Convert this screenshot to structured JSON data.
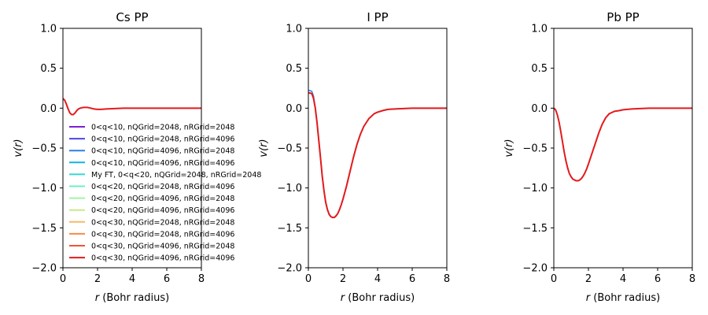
{
  "chart_data": [
    {
      "type": "line",
      "title": "Cs PP",
      "xlabel_parts": [
        "r",
        " (Bohr radius)"
      ],
      "ylabel_parts": [
        "v(r)"
      ],
      "xlim": [
        0,
        8
      ],
      "ylim": [
        -2.0,
        1.0
      ],
      "xticks": [
        "0",
        "2",
        "4",
        "6",
        "8"
      ],
      "yticks": [
        "1.0",
        "0.5",
        "0.0",
        "−0.5",
        "−1.0",
        "−1.5",
        "−2.0"
      ],
      "grid": false,
      "legend_location": "lower-left, extending beyond axes",
      "series_color": "#e31a1c",
      "x": [
        0,
        0.1,
        0.2,
        0.3,
        0.4,
        0.5,
        0.6,
        0.7,
        0.8,
        0.9,
        1.0,
        1.2,
        1.4,
        1.6,
        1.8,
        2.0,
        2.2,
        2.5,
        3.0,
        3.5,
        4.0,
        5.0,
        6.0,
        7.0,
        8.0
      ],
      "y": [
        0.12,
        0.1,
        0.05,
        -0.01,
        -0.06,
        -0.08,
        -0.08,
        -0.06,
        -0.03,
        -0.01,
        0.0,
        0.01,
        0.01,
        0.0,
        -0.01,
        -0.015,
        -0.015,
        -0.01,
        -0.005,
        0.0,
        0.0,
        0.0,
        0.0,
        0.0,
        0.0
      ]
    },
    {
      "type": "line",
      "title": "I PP",
      "xlabel_parts": [
        "r",
        " (Bohr radius)"
      ],
      "ylabel_parts": [
        "v(r)"
      ],
      "xlim": [
        0,
        8
      ],
      "ylim": [
        -2.0,
        1.0
      ],
      "xticks": [
        "0",
        "2",
        "4",
        "6",
        "8"
      ],
      "yticks": [
        "1.0",
        "0.5",
        "0.0",
        "−0.5",
        "−1.0",
        "−1.5",
        "−2.0"
      ],
      "grid": false,
      "series_color": "#e31a1c",
      "x": [
        0,
        0.1,
        0.2,
        0.3,
        0.4,
        0.5,
        0.6,
        0.7,
        0.8,
        0.9,
        1.0,
        1.1,
        1.2,
        1.3,
        1.4,
        1.5,
        1.6,
        1.7,
        1.8,
        1.9,
        2.0,
        2.2,
        2.4,
        2.6,
        2.8,
        3.0,
        3.2,
        3.5,
        3.8,
        4.0,
        4.3,
        4.6,
        5.0,
        5.5,
        6.0,
        7.0,
        8.0
      ],
      "y": [
        0.19,
        0.19,
        0.18,
        0.12,
        0.0,
        -0.18,
        -0.4,
        -0.62,
        -0.85,
        -1.03,
        -1.18,
        -1.27,
        -1.33,
        -1.36,
        -1.37,
        -1.37,
        -1.35,
        -1.32,
        -1.27,
        -1.21,
        -1.14,
        -0.98,
        -0.8,
        -0.62,
        -0.46,
        -0.33,
        -0.23,
        -0.13,
        -0.07,
        -0.05,
        -0.03,
        -0.015,
        -0.01,
        -0.005,
        0.0,
        0.0,
        0.0
      ]
    },
    {
      "type": "line",
      "title": "Pb PP",
      "xlabel_parts": [
        "r",
        " (Bohr radius)"
      ],
      "ylabel_parts": [
        "v(r)"
      ],
      "xlim": [
        0,
        8
      ],
      "ylim": [
        -2.0,
        1.0
      ],
      "xticks": [
        "0",
        "2",
        "4",
        "6",
        "8"
      ],
      "yticks": [
        "1.0",
        "0.5",
        "0.0",
        "−0.5",
        "−1.0",
        "−1.5",
        "−2.0"
      ],
      "grid": false,
      "series_color": "#e31a1c",
      "x": [
        0,
        0.1,
        0.2,
        0.3,
        0.4,
        0.5,
        0.6,
        0.7,
        0.8,
        0.9,
        1.0,
        1.1,
        1.2,
        1.3,
        1.4,
        1.5,
        1.6,
        1.7,
        1.8,
        1.9,
        2.0,
        2.2,
        2.4,
        2.6,
        2.8,
        3.0,
        3.2,
        3.5,
        3.8,
        4.0,
        4.5,
        5.0,
        5.5,
        6.0,
        7.0,
        8.0
      ],
      "y": [
        0.0,
        -0.02,
        -0.08,
        -0.17,
        -0.29,
        -0.42,
        -0.55,
        -0.66,
        -0.75,
        -0.82,
        -0.86,
        -0.89,
        -0.9,
        -0.91,
        -0.91,
        -0.9,
        -0.88,
        -0.85,
        -0.81,
        -0.76,
        -0.7,
        -0.57,
        -0.44,
        -0.31,
        -0.2,
        -0.12,
        -0.07,
        -0.04,
        -0.03,
        -0.02,
        -0.01,
        -0.005,
        0.0,
        0.0,
        0.0,
        0.0
      ]
    }
  ],
  "legend": {
    "entries": [
      {
        "label": "0<q<10, nQGrid=2048, nRGrid=2048",
        "color": "#7e1fd1"
      },
      {
        "label": "0<q<10, nQGrid=2048, nRGrid=4096",
        "color": "#4a47e8"
      },
      {
        "label": "0<q<10, nQGrid=4096, nRGrid=2048",
        "color": "#2b7fe0"
      },
      {
        "label": "0<q<10, nQGrid=4096, nRGrid=4096",
        "color": "#14b2e6"
      },
      {
        "label": "My FT, 0<q<20, nQGrid=2048, nRGrid=2048",
        "color": "#36d6d0"
      },
      {
        "label": "0<q<20, nQGrid=2048, nRGrid=4096",
        "color": "#6ef0c0"
      },
      {
        "label": "0<q<20, nQGrid=4096, nRGrid=2048",
        "color": "#a0f4a8"
      },
      {
        "label": "0<q<20, nQGrid=4096, nRGrid=4096",
        "color": "#c8e88a"
      },
      {
        "label": "0<q<30, nQGrid=2048, nRGrid=2048",
        "color": "#f7b866"
      },
      {
        "label": "0<q<30, nQGrid=2048, nRGrid=4096",
        "color": "#f88a47"
      },
      {
        "label": "0<q<30, nQGrid=4096, nRGrid=2048",
        "color": "#f55233"
      },
      {
        "label": "0<q<30, nQGrid=4096, nRGrid=4096",
        "color": "#e31a1c"
      }
    ]
  }
}
